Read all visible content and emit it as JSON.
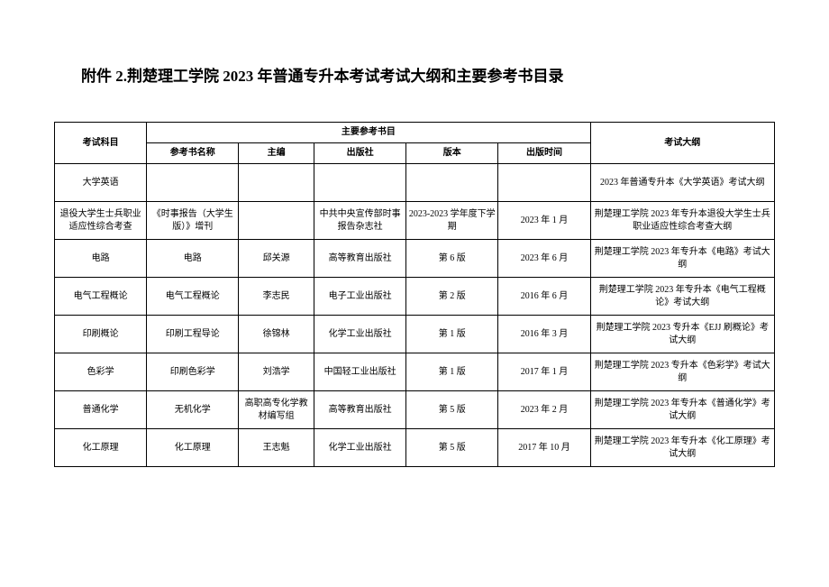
{
  "title": "附件 2.荆楚理工学院 2023 年普通专升本考试考试大纲和主要参考书目录",
  "headers": {
    "subject": "考试科目",
    "mainRef": "主要参考书目",
    "book": "参考书名称",
    "editor": "主编",
    "publisher": "出版社",
    "edition": "版本",
    "date": "出版时间",
    "outline": "考试大纲"
  },
  "rows": [
    {
      "subject": "大学英语",
      "book": "",
      "editor": "",
      "publisher": "",
      "edition": "",
      "date": "",
      "outline": "2023 年普通专升本《大学英语》考试大纲"
    },
    {
      "subject": "退役大学生士兵职业适应性综合考查",
      "book": "《时事报告（大学生版）》增刊",
      "editor": "",
      "publisher": "中共中央宣传部时事报告杂志社",
      "edition": "2023-2023 学年度下学期",
      "date": "2023 年 1 月",
      "outline": "荆楚理工学院 2023 年专升本退役大学生士兵职业适应性综合考查大纲"
    },
    {
      "subject": "电路",
      "book": "电路",
      "editor": "邱关源",
      "publisher": "高等教育出版社",
      "edition": "第 6 版",
      "date": "2023 年 6 月",
      "outline": "荆楚理工学院 2023 年专升本《电路》考试大纲"
    },
    {
      "subject": "电气工程概论",
      "book": "电气工程概论",
      "editor": "李志民",
      "publisher": "电子工业出版社",
      "edition": "第 2 版",
      "date": "2016 年 6 月",
      "outline": "荆楚理工学院 2023 年专升本《电气工程概论》考试大纲"
    },
    {
      "subject": "印刷概论",
      "book": "印刷工程导论",
      "editor": "徐锦林",
      "publisher": "化学工业出版社",
      "edition": "第 1 版",
      "date": "2016 年 3 月",
      "outline": "荆楚理工学院 2023 专升本《EJJ 刷概论》考试大纲"
    },
    {
      "subject": "色彩学",
      "book": "印刷色彩学",
      "editor": "刘浩学",
      "publisher": "中国轻工业出版社",
      "edition": "第 1 版",
      "date": "2017 年 1 月",
      "outline": "荆楚理工学院 2023 专升本《色彩学》考试大纲"
    },
    {
      "subject": "普通化学",
      "book": "无机化学",
      "editor": "高职高专化学教材编写组",
      "publisher": "高等教育出版社",
      "edition": "第 5 版",
      "date": "2023 年 2 月",
      "outline": "荆楚理工学院 2023 年专升本《普通化学》考试大纲"
    },
    {
      "subject": "化工原理",
      "book": "化工原理",
      "editor": "王志魁",
      "publisher": "化学工业出版社",
      "edition": "第 5 版",
      "date": "2017 年 10 月",
      "outline": "荆楚理工学院 2023 年专升本《化工原理》考试大纲"
    }
  ],
  "style": {
    "background": "#ffffff",
    "border_color": "#000000",
    "text_color": "#000000",
    "title_fontsize": 17,
    "table_fontsize": 10
  }
}
